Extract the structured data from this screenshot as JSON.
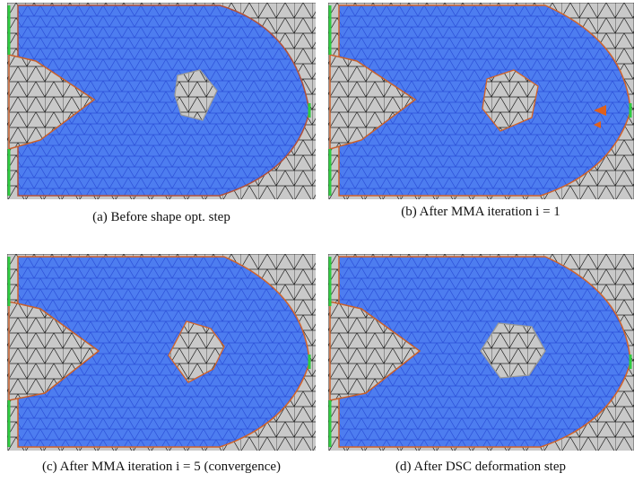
{
  "panels": [
    {
      "caption": "(a) Before shape opt. step"
    },
    {
      "caption": "(b) After MMA iteration i = 1"
    },
    {
      "caption": "(c) After MMA iteration i = 5 (convergence)"
    },
    {
      "caption": "(d) After DSC deformation step"
    }
  ]
}
